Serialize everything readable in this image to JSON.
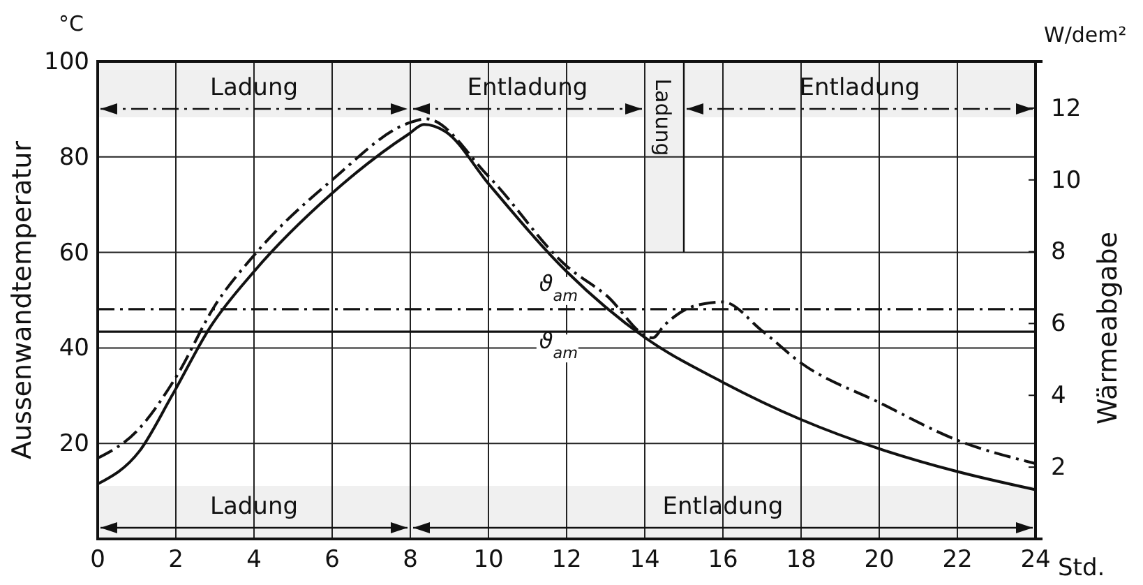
{
  "chart_data": {
    "type": "line",
    "xlabel": "Std.",
    "ylabel": "Aussenwandtemperatur",
    "y2label": "Wärmeabgabe",
    "annotations": [
      "°C",
      "W/dem²"
    ],
    "series": [
      {
        "color": "#111111",
        "line_style": "solid",
        "x": [
          0,
          1.07,
          1.9,
          2.9,
          4.0,
          6.0,
          7.96,
          8.35,
          8.9,
          10,
          12,
          14,
          16,
          18,
          20.07,
          22,
          24
        ],
        "values": [
          11.5,
          18.4,
          30,
          44.6,
          56,
          72.4,
          84.8,
          86.8,
          85.3,
          74.4,
          56,
          42.2,
          32.8,
          25,
          18.7,
          14.1,
          10.3
        ]
      },
      {
        "color": "#111111",
        "line_style": "dashed",
        "axis": "y2",
        "x": [
          0,
          1,
          2,
          3,
          4,
          6,
          8,
          8.4,
          10,
          12,
          13,
          14.2,
          14.5,
          15.3,
          16,
          17,
          18,
          20,
          22,
          24
        ],
        "values": [
          2.25,
          3.0,
          4.5,
          6.5,
          7.9,
          10.0,
          11.6,
          11.7,
          10.1,
          7.6,
          6.8,
          5.6,
          5.95,
          6.5,
          6.6,
          5.8,
          4.9,
          3.8,
          2.75,
          2.1
        ]
      }
    ],
    "xlim": [
      0,
      24
    ],
    "xticks": [
      0,
      2,
      4,
      6,
      8,
      10,
      12,
      14,
      16,
      18,
      20,
      22,
      24
    ],
    "ylim": [
      0,
      100
    ],
    "yticks": [
      20,
      40,
      60,
      80,
      100
    ],
    "y2lim": [
      0,
      13.3
    ],
    "y2ticks": [
      2,
      4,
      6,
      8,
      10,
      12
    ],
    "ref_lines": [
      {
        "axis": "y2",
        "value": 6.4,
        "label": "ϑ$_{am}$",
        "line_style": "dashed"
      },
      {
        "axis": "y",
        "value": 43.4,
        "label": "ϑ$_{am}$",
        "line_style": "solid"
      }
    ],
    "bands": [
      {
        "axis": "x",
        "from": 0,
        "to": 8,
        "label": "Ladung",
        "color": "#f0f0f0"
      },
      {
        "axis": "x",
        "from": 8,
        "to": 14,
        "label": "Entladung",
        "color": "#f0f0f0"
      },
      {
        "axis": "x",
        "from": 14,
        "to": 15,
        "label": "Ladung",
        "color": "#f0f0f0"
      },
      {
        "axis": "x",
        "from": 15,
        "to": 24,
        "label": "Entladung",
        "color": "#f0f0f0"
      },
      {
        "axis": "x",
        "from": 0,
        "to": 8,
        "label": "Ladung",
        "color": "#f0f0f0"
      },
      {
        "axis": "x",
        "from": 8,
        "to": 24,
        "label": "Entladung",
        "color": "#f0f0f0"
      }
    ],
    "grid": true,
    "marker": "none"
  }
}
